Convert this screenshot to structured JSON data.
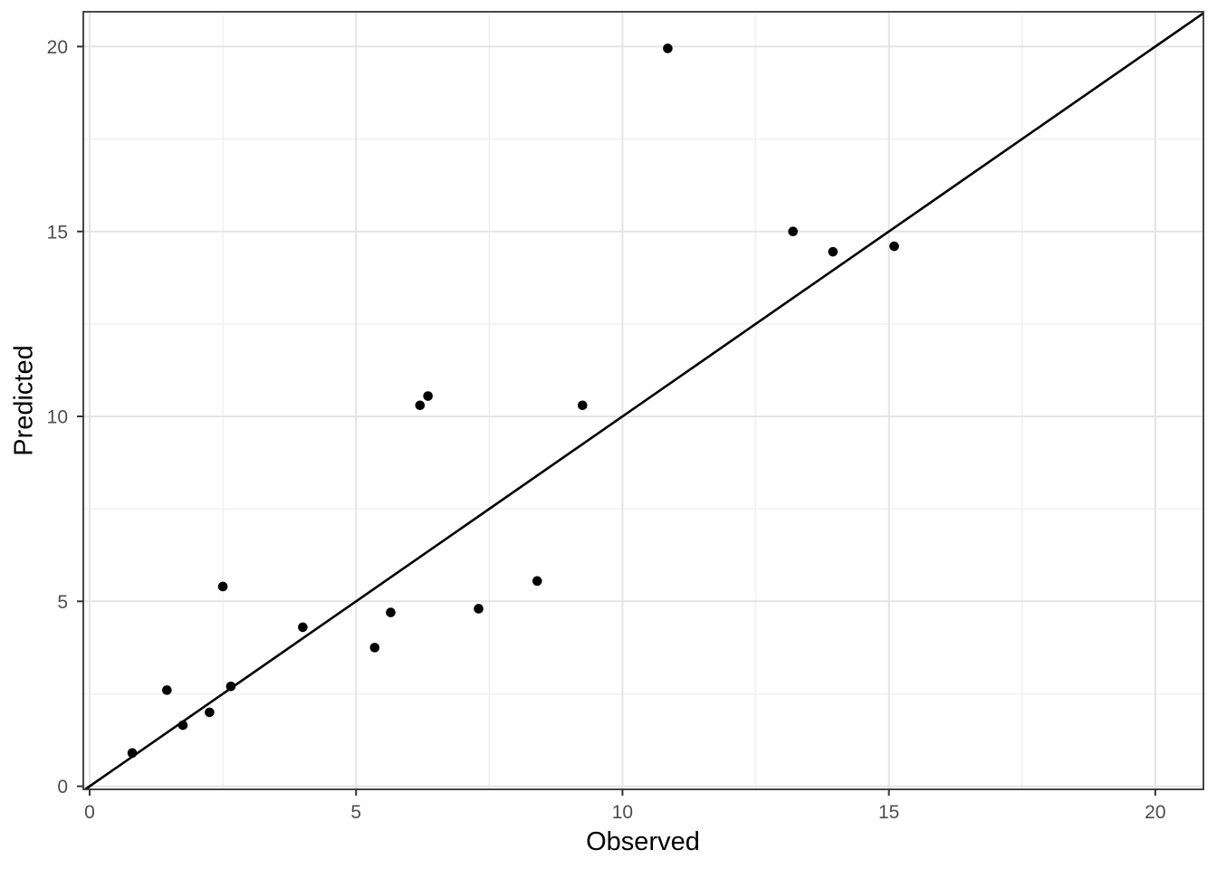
{
  "chart_data": {
    "type": "scatter",
    "title": "",
    "xlabel": "Observed",
    "ylabel": "Predicted",
    "x_ticks": [
      0,
      5,
      10,
      15,
      20
    ],
    "x_tick_labels": [
      "0",
      "5",
      "10",
      "15",
      "20"
    ],
    "y_ticks": [
      0,
      5,
      10,
      15,
      20
    ],
    "y_tick_labels": [
      "0",
      "5",
      "10",
      "15",
      "20"
    ],
    "x_minor_ticks": [
      2.5,
      7.5,
      12.5,
      17.5
    ],
    "y_minor_ticks": [
      2.5,
      7.5,
      12.5,
      17.5
    ],
    "xlim": [
      -0.119,
      20.903
    ],
    "ylim": [
      -0.083,
      20.94
    ],
    "grid": true,
    "legend": false,
    "points": [
      {
        "x": 0.8,
        "y": 0.9
      },
      {
        "x": 1.45,
        "y": 2.6
      },
      {
        "x": 1.75,
        "y": 1.65
      },
      {
        "x": 2.25,
        "y": 2.0
      },
      {
        "x": 2.5,
        "y": 5.4
      },
      {
        "x": 2.65,
        "y": 2.7
      },
      {
        "x": 4.0,
        "y": 4.3
      },
      {
        "x": 5.35,
        "y": 3.75
      },
      {
        "x": 5.65,
        "y": 4.7
      },
      {
        "x": 6.2,
        "y": 10.3
      },
      {
        "x": 6.35,
        "y": 10.55
      },
      {
        "x": 7.3,
        "y": 4.8
      },
      {
        "x": 8.4,
        "y": 5.55
      },
      {
        "x": 9.25,
        "y": 10.3
      },
      {
        "x": 10.85,
        "y": 19.95
      },
      {
        "x": 13.2,
        "y": 15.0
      },
      {
        "x": 13.95,
        "y": 14.45
      },
      {
        "x": 15.1,
        "y": 14.6
      }
    ],
    "reference_line": {
      "slope": 1,
      "intercept": 0
    },
    "colors": {
      "background": "#ffffff",
      "panel_background": "#ffffff",
      "panel_border": "#343434",
      "grid_major": "#e4e4e4",
      "grid_minor": "#f0f0f0",
      "point": "#000000",
      "reference_line": "#000000",
      "tick_mark": "#333333",
      "tick_label": "#4d4d4d",
      "axis_title": "#000000"
    }
  }
}
